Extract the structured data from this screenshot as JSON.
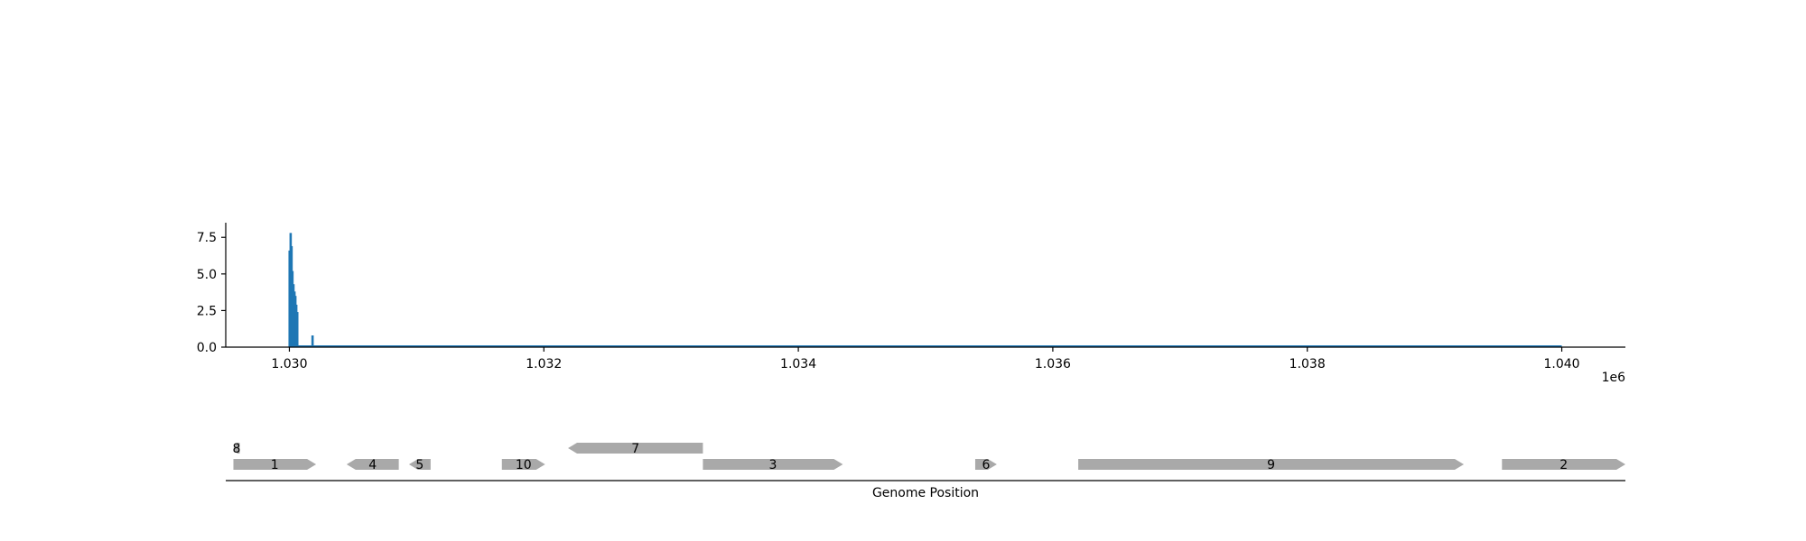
{
  "chart_data": [
    {
      "type": "bar",
      "title": "",
      "xlabel": "",
      "ylabel": "",
      "xlim": [
        1029500,
        1040500
      ],
      "ylim": [
        0,
        8.5
      ],
      "x_offset_label": "1e6",
      "x_ticks": [
        {
          "value": 1030000,
          "label": "1.030"
        },
        {
          "value": 1032000,
          "label": "1.032"
        },
        {
          "value": 1034000,
          "label": "1.034"
        },
        {
          "value": 1036000,
          "label": "1.036"
        },
        {
          "value": 1038000,
          "label": "1.038"
        },
        {
          "value": 1040000,
          "label": "1.040"
        }
      ],
      "y_ticks": [
        {
          "value": 0,
          "label": "0.0"
        },
        {
          "value": 2.5,
          "label": "2.5"
        },
        {
          "value": 5,
          "label": "5.0"
        },
        {
          "value": 7.5,
          "label": "7.5"
        }
      ],
      "series_color": "#1f77b4",
      "bars": [
        {
          "x": 1030000,
          "y": 6.6
        },
        {
          "x": 1030008,
          "y": 7.8
        },
        {
          "x": 1030015,
          "y": 6.9
        },
        {
          "x": 1030022,
          "y": 5.2
        },
        {
          "x": 1030030,
          "y": 4.3
        },
        {
          "x": 1030038,
          "y": 3.8
        },
        {
          "x": 1030045,
          "y": 3.5
        },
        {
          "x": 1030052,
          "y": 2.9
        },
        {
          "x": 1030060,
          "y": 2.4
        },
        {
          "x": 1030180,
          "y": 0.8
        }
      ],
      "baseline": {
        "x_start": 1030000,
        "x_end": 1040000,
        "y": 0
      }
    },
    {
      "type": "gene-track",
      "title": "",
      "xlabel": "Genome Position",
      "xlim": [
        1029500,
        1040500
      ],
      "color": "#a9a9a9",
      "genes": [
        {
          "label": "8",
          "start": 1029560,
          "end": 1029610,
          "strand": -1,
          "row": 1
        },
        {
          "label": "1",
          "start": 1029560,
          "end": 1030210,
          "strand": 1,
          "row": 0
        },
        {
          "label": "4",
          "start": 1030450,
          "end": 1030860,
          "strand": -1,
          "row": 0
        },
        {
          "label": "5",
          "start": 1030940,
          "end": 1031110,
          "strand": -1,
          "row": 0
        },
        {
          "label": "10",
          "start": 1031670,
          "end": 1032010,
          "strand": 1,
          "row": 0
        },
        {
          "label": "7",
          "start": 1032190,
          "end": 1033250,
          "strand": -1,
          "row": 1
        },
        {
          "label": "3",
          "start": 1033250,
          "end": 1034350,
          "strand": 1,
          "row": 0
        },
        {
          "label": "6",
          "start": 1035390,
          "end": 1035560,
          "strand": 1,
          "row": 0
        },
        {
          "label": "9",
          "start": 1036200,
          "end": 1039230,
          "strand": 1,
          "row": 0
        },
        {
          "label": "2",
          "start": 1039530,
          "end": 1040500,
          "strand": 1,
          "row": 0
        }
      ]
    }
  ]
}
